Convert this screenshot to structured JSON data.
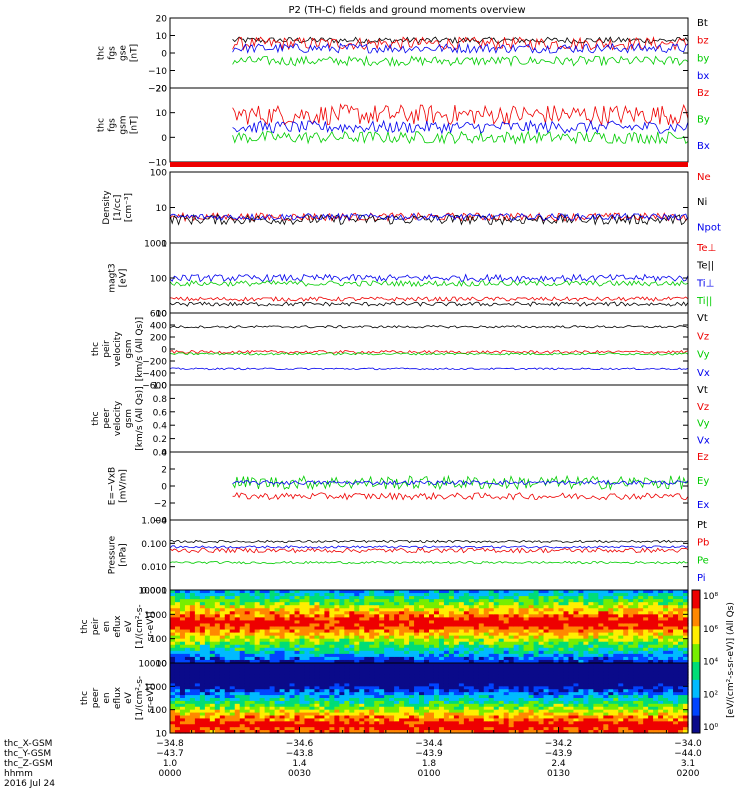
{
  "title": "P2 (TH-C) fields and ground moments overview",
  "colors": {
    "black": "#000000",
    "red": "#ee0000",
    "green": "#00cc00",
    "blue": "#0000ee"
  },
  "chart_data": [
    {
      "type": "line",
      "panel": "fgs_gse",
      "ylabel": [
        "thc",
        "fgs",
        "gse",
        "[nT]"
      ],
      "yticks": [
        "20",
        "10",
        "0",
        "−10",
        "−20"
      ],
      "ylim": [
        -22,
        22
      ],
      "legend": [
        "Bt",
        "bz",
        "by",
        "bx"
      ],
      "series": [
        {
          "name": "Bt",
          "color": "#000000",
          "level": 8,
          "noise": 2,
          "start": 0.12
        },
        {
          "name": "bz",
          "color": "#ee0000",
          "level": 6,
          "noise": 4,
          "start": 0.12
        },
        {
          "name": "by",
          "color": "#00cc00",
          "level": -5,
          "noise": 3,
          "start": 0.12
        },
        {
          "name": "bx",
          "color": "#0000ee",
          "level": 3,
          "noise": 3,
          "start": 0.12
        }
      ]
    },
    {
      "type": "line",
      "panel": "fgs_gsm",
      "ylabel": [
        "thc",
        "fgs",
        "gsm",
        "[nT]"
      ],
      "yticks": [
        "20",
        "10",
        "0",
        "−10"
      ],
      "ylim": [
        -14,
        22
      ],
      "legend": [
        "Bz",
        "By",
        "Bx"
      ],
      "series": [
        {
          "name": "Bz",
          "color": "#ee0000",
          "level": 9,
          "noise": 5,
          "start": 0.12
        },
        {
          "name": "By",
          "color": "#00cc00",
          "level": -2,
          "noise": 3,
          "start": 0.12
        },
        {
          "name": "Bx",
          "color": "#0000ee",
          "level": 3,
          "noise": 3,
          "start": 0.12
        }
      ]
    },
    {
      "type": "line",
      "panel": "density",
      "scale": "log",
      "ylabel": [
        "Density",
        "[1/cc]",
        "[cm⁻³]"
      ],
      "yticks": [
        "100",
        "10",
        "1"
      ],
      "ylim": [
        1,
        130
      ],
      "legend": [
        "Ne",
        "Ni",
        "Npot"
      ],
      "series": [
        {
          "name": "Ne",
          "color": "#ee0000",
          "level": 6,
          "noise": 0.12,
          "start": 0
        },
        {
          "name": "Ni",
          "color": "#000000",
          "level": 5,
          "noise": 0.15,
          "start": 0
        },
        {
          "name": "Npot",
          "color": "#0000ee",
          "level": 6,
          "noise": 0.1,
          "start": 0
        }
      ]
    },
    {
      "type": "line",
      "panel": "temperature",
      "scale": "log",
      "ylabel": [
        "magt3",
        "[eV]"
      ],
      "yticks": [
        "1000",
        "100",
        "10"
      ],
      "ylim": [
        10,
        1000
      ],
      "legend": [
        "Te⊥",
        "Te||",
        "Ti⊥",
        "Ti||"
      ],
      "series": [
        {
          "name": "Te⊥",
          "color": "#ee0000",
          "level": 25,
          "noise": 0.06,
          "start": 0
        },
        {
          "name": "Te||",
          "color": "#000000",
          "level": 18,
          "noise": 0.06,
          "start": 0
        },
        {
          "name": "Ti⊥",
          "color": "#0000ee",
          "level": 100,
          "noise": 0.1,
          "start": 0
        },
        {
          "name": "Ti||",
          "color": "#00cc00",
          "level": 70,
          "noise": 0.08,
          "start": 0
        }
      ]
    },
    {
      "type": "line",
      "panel": "peir_velocity",
      "ylabel": [
        "thc",
        "peir",
        "velocity",
        "gsm",
        "[km/s (All Qs)]"
      ],
      "yticks": [
        "600",
        "400",
        "200",
        "0",
        "−200",
        "−400",
        "−600"
      ],
      "ylim": [
        -600,
        600
      ],
      "legend": [
        "Vt",
        "Vz",
        "Vy",
        "Vx"
      ],
      "series": [
        {
          "name": "Vt",
          "color": "#000000",
          "level": 370,
          "noise": 20,
          "start": 0
        },
        {
          "name": "Vz",
          "color": "#ee0000",
          "level": -50,
          "noise": 25,
          "start": 0
        },
        {
          "name": "Vy",
          "color": "#00cc00",
          "level": -80,
          "noise": 20,
          "start": 0
        },
        {
          "name": "Vx",
          "color": "#0000ee",
          "level": -330,
          "noise": 15,
          "start": 0
        }
      ]
    },
    {
      "type": "line",
      "panel": "peer_velocity",
      "ylabel": [
        "thc",
        "peer",
        "velocity",
        "gsm",
        "[km/s (All Qs)]"
      ],
      "yticks": [
        "1.0",
        "0.8",
        "0.6",
        "0.4",
        "0.2",
        "0.0"
      ],
      "ylim": [
        0,
        1
      ],
      "legend": [
        "Vt",
        "Vz",
        "Vy",
        "Vx"
      ],
      "series": []
    },
    {
      "type": "line",
      "panel": "efield",
      "ylabel": [
        "E=−VxB",
        "[mV/m]"
      ],
      "yticks": [
        "4",
        "2",
        "0",
        "−2",
        "−4"
      ],
      "ylim": [
        -5,
        5
      ],
      "legend": [
        "Ez",
        "Ey",
        "Ex"
      ],
      "series": [
        {
          "name": "Ez",
          "color": "#ee0000",
          "level": -1.5,
          "noise": 0.5,
          "start": 0.12
        },
        {
          "name": "Ey",
          "color": "#00cc00",
          "level": 0.5,
          "noise": 1.0,
          "start": 0.12
        },
        {
          "name": "Ex",
          "color": "#0000ee",
          "level": 0.5,
          "noise": 0.3,
          "start": 0.12
        }
      ]
    },
    {
      "type": "line",
      "panel": "pressure",
      "scale": "log",
      "ylabel": [
        "Pressure",
        "[nPa]"
      ],
      "yticks": [
        "1.000",
        "0.100",
        "0.010",
        "0.001"
      ],
      "ylim": [
        0.001,
        1
      ],
      "legend": [
        "Pt",
        "Pb",
        "Pe",
        "Pi"
      ],
      "series": [
        {
          "name": "Pt",
          "color": "#000000",
          "level": 0.12,
          "noise": 0.05,
          "start": 0
        },
        {
          "name": "Pb",
          "color": "#ee0000",
          "level": 0.05,
          "noise": 0.1,
          "start": 0
        },
        {
          "name": "Pe",
          "color": "#00cc00",
          "level": 0.015,
          "noise": 0.05,
          "start": 0
        },
        {
          "name": "Pi",
          "color": "#0000ee",
          "level": 0.07,
          "noise": 0.05,
          "start": 0
        }
      ]
    },
    {
      "type": "heatmap",
      "panel": "peir_spectrogram",
      "scale": "log",
      "ylabel": [
        "thc",
        "peir",
        "en",
        "eflux",
        "eV",
        "[1/(cm²-s-",
        "sr-eV)]"
      ],
      "yticks": [
        "10000",
        "1000",
        "100",
        "10"
      ],
      "ylim": [
        5,
        30000
      ],
      "peak_energy": 600
    },
    {
      "type": "heatmap",
      "panel": "peer_spectrogram",
      "scale": "log",
      "ylabel": [
        "thc",
        "peer",
        "en",
        "eflux",
        "eV",
        "[1/(cm²-s-",
        "sr-eV)]"
      ],
      "yticks": [
        "10000",
        "1000",
        "100",
        "10"
      ],
      "ylim": [
        5,
        30000
      ],
      "peak_energy": 12
    }
  ],
  "colorbar": {
    "ticks": [
      "10⁸",
      "10⁶",
      "10⁴",
      "10²",
      "10⁰"
    ],
    "label": "[eV/(cm²-s-sr-eV)] (All Qs)"
  },
  "xaxis": {
    "ticks": [
      "0000",
      "0030",
      "0100",
      "0130",
      "0200"
    ],
    "rows": [
      {
        "label": "thc_X-GSM",
        "values": [
          "−34.8",
          "−34.6",
          "−34.4",
          "−34.2",
          "−34.0"
        ]
      },
      {
        "label": "thc_Y-GSM",
        "values": [
          "−43.7",
          "−43.8",
          "−43.9",
          "−43.9",
          "−44.0"
        ]
      },
      {
        "label": "thc_Z-GSM",
        "values": [
          "1.0",
          "1.4",
          "1.8",
          "2.4",
          "3.1"
        ]
      },
      {
        "label": "hhmm",
        "values": [
          "0000",
          "0030",
          "0100",
          "0130",
          "0200"
        ]
      }
    ],
    "date": "2016 Jul 24"
  }
}
